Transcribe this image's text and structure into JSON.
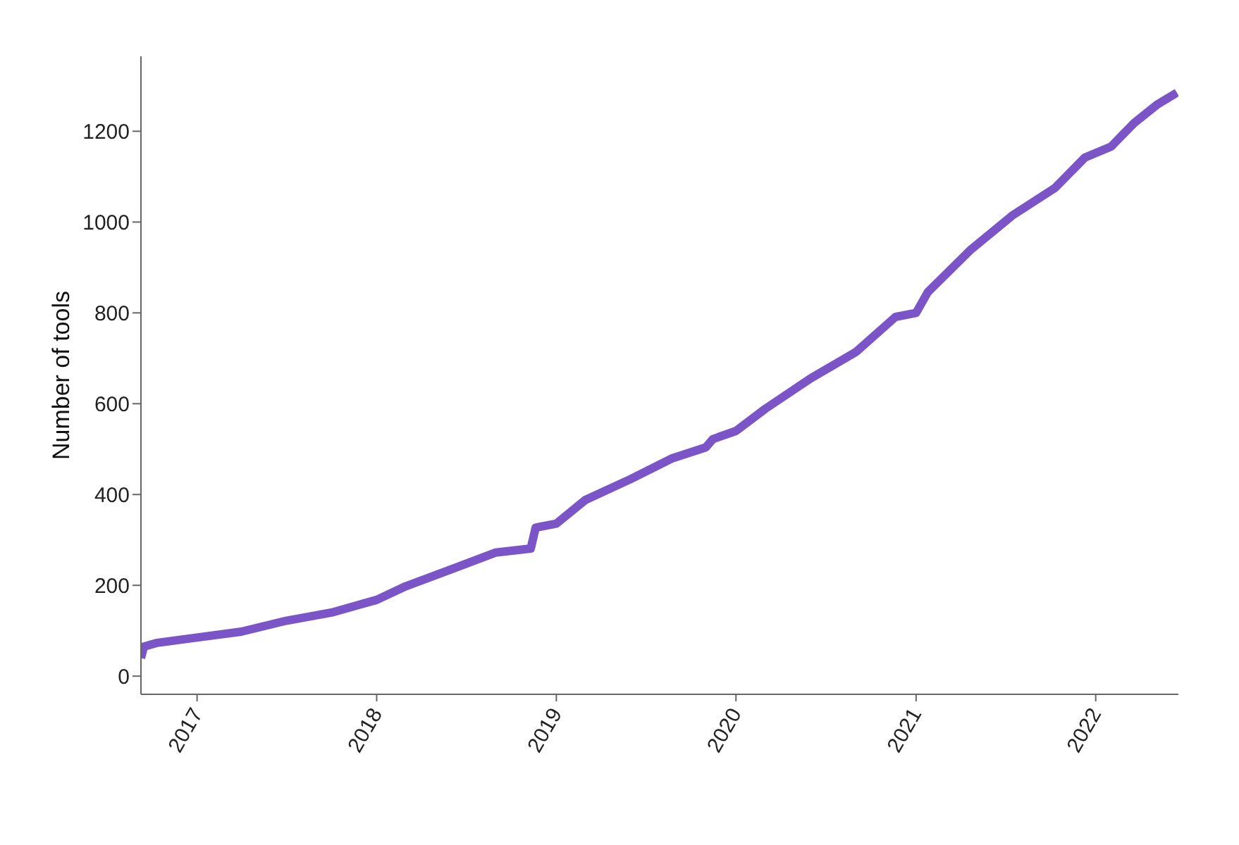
{
  "chart_data": {
    "type": "line",
    "ylabel": "Number of tools",
    "x": [
      "2016-09-09",
      "2016-09-15",
      "2016-10-10",
      "2017-01-01",
      "2017-04-01",
      "2017-07-01",
      "2017-10-01",
      "2018-01-01",
      "2018-03-01",
      "2018-06-01",
      "2018-08-30",
      "2018-11-10",
      "2018-11-20",
      "2019-01-01",
      "2019-03-01",
      "2019-06-01",
      "2019-08-25",
      "2019-11-01",
      "2019-11-15",
      "2020-01-01",
      "2020-03-01",
      "2020-06-01",
      "2020-09-01",
      "2020-11-20",
      "2021-01-01",
      "2021-01-25",
      "2021-04-20",
      "2021-07-15",
      "2021-10-10",
      "2021-12-10",
      "2022-02-01",
      "2022-03-20",
      "2022-05-05",
      "2022-06-15"
    ],
    "series": [
      {
        "color": "#7b55c7",
        "values": [
          40,
          65,
          73,
          85,
          98,
          122,
          140,
          168,
          198,
          235,
          272,
          281,
          327,
          336,
          388,
          434,
          480,
          504,
          522,
          540,
          589,
          656,
          714,
          791,
          800,
          846,
          937,
          1014,
          1075,
          1142,
          1166,
          1218,
          1258,
          1285
        ]
      }
    ],
    "xlim": [
      "2016-09-09",
      "2022-06-18"
    ],
    "xticks": [
      "2017",
      "2018",
      "2019",
      "2020",
      "2021",
      "2022"
    ],
    "ylim": [
      -40,
      1365
    ],
    "yticks": [
      0,
      200,
      400,
      600,
      800,
      1000,
      1200
    ],
    "grid": false,
    "legend": false,
    "marker": "none",
    "line_style": "solid"
  }
}
